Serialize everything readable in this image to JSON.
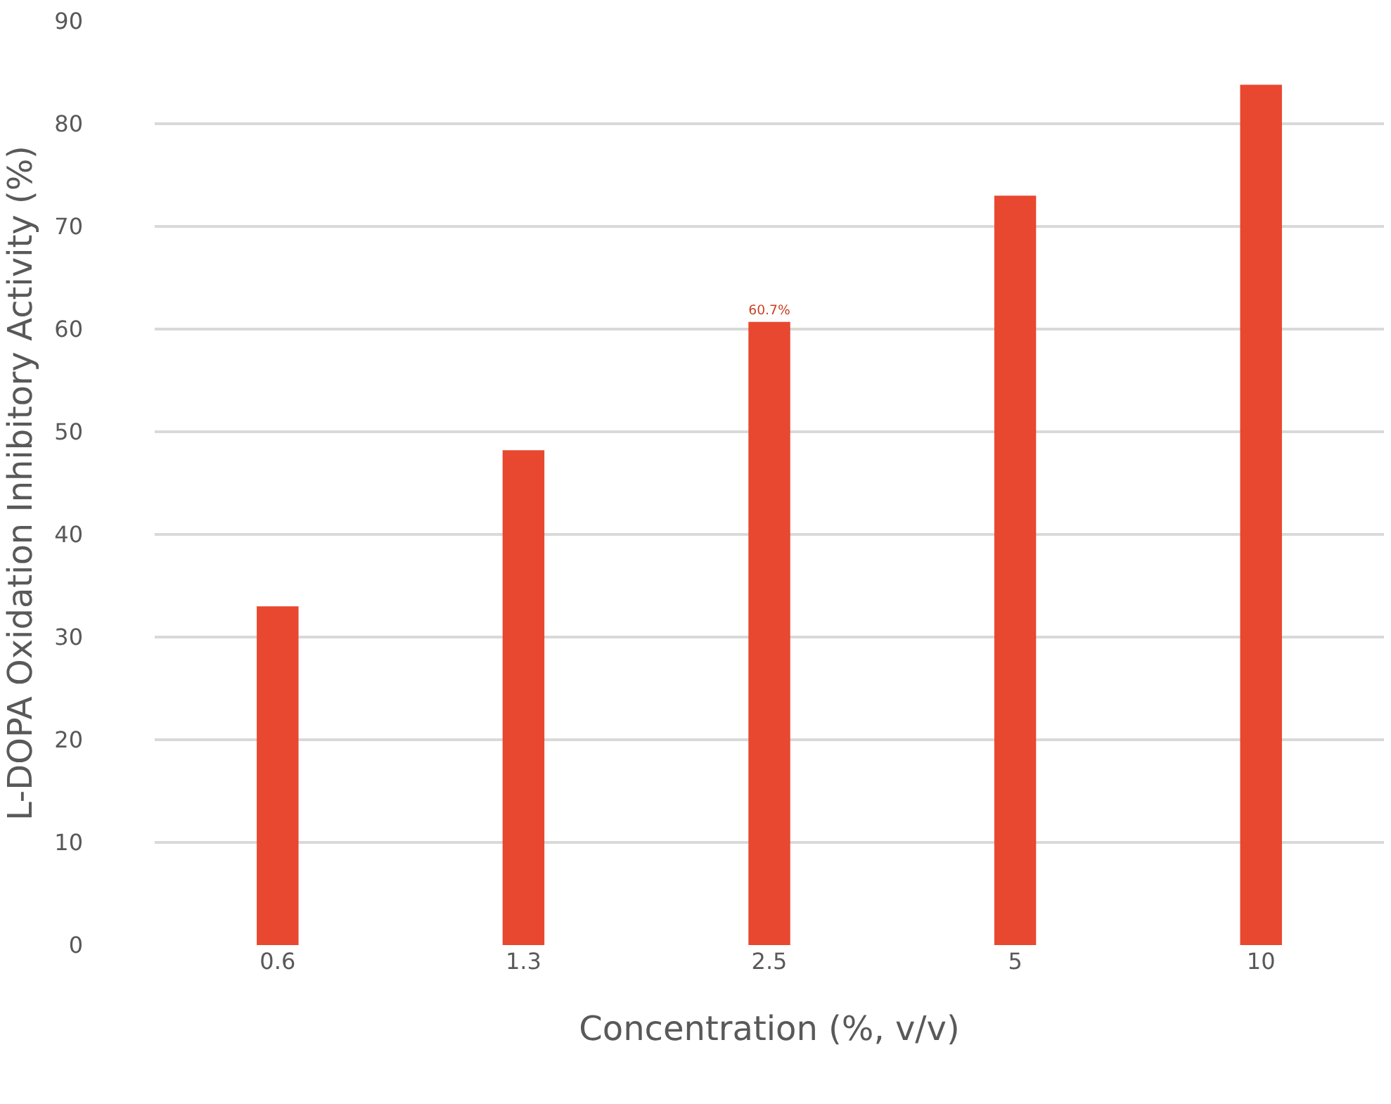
{
  "chart_data": {
    "type": "bar",
    "xlabel": "Concentration (%, v/v)",
    "ylabel": "L-DOPA Oxidation Inhibitory Activity (%)",
    "categories": [
      "0.6",
      "1.3",
      "2.5",
      "5",
      "10"
    ],
    "values": [
      33,
      48.2,
      60.7,
      73,
      83.8
    ],
    "value_labels": [
      null,
      null,
      "60.7%",
      null,
      null
    ],
    "color": "#e8482f",
    "ylim": [
      0,
      90
    ],
    "yticks": [
      0,
      10,
      20,
      30,
      40,
      50,
      60,
      70,
      80,
      90
    ],
    "grid": "y"
  }
}
